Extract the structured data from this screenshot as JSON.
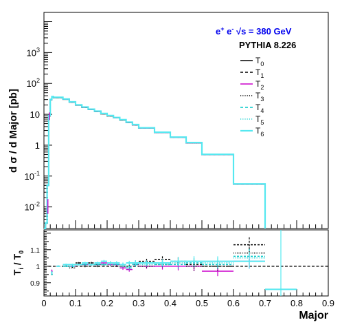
{
  "chart_data": [
    {
      "type": "line",
      "panel": "top",
      "ylabel": "d σ / d Major [pb]",
      "yscale": "log",
      "ylim": [
        0.002,
        20000
      ],
      "xlim": [
        0,
        0.9
      ],
      "grid": false,
      "y_tick_labels": [
        {
          "v": 0.01,
          "base": "10",
          "exp": "-2"
        },
        {
          "v": 0.1,
          "base": "10",
          "exp": "-1"
        },
        {
          "v": 1,
          "base": "1",
          "exp": ""
        },
        {
          "v": 10,
          "base": "10",
          "exp": ""
        },
        {
          "v": 100,
          "base": "10",
          "exp": "2"
        },
        {
          "v": 1000,
          "base": "10",
          "exp": "3"
        }
      ],
      "bin_edges": [
        0,
        0.005,
        0.01,
        0.015,
        0.02,
        0.025,
        0.03,
        0.06,
        0.08,
        0.1,
        0.12,
        0.14,
        0.16,
        0.18,
        0.2,
        0.22,
        0.24,
        0.26,
        0.28,
        0.3,
        0.35,
        0.4,
        0.45,
        0.5,
        0.6,
        0.7
      ],
      "values": [
        0,
        0.003,
        0.05,
        9,
        30,
        37,
        35,
        31,
        25,
        20,
        17,
        14.5,
        12.5,
        10.5,
        9,
        7.8,
        6.6,
        5.5,
        4.6,
        3.6,
        2.6,
        1.8,
        1.2,
        0.5,
        0.055
      ],
      "legend_position": "top-right",
      "annotations": {
        "process_pre": "e",
        "process_sup1": "+",
        "process_mid": " e",
        "process_sup2": "-",
        "process_post": " √s = 380 GeV",
        "generator": "PYTHIA 8.226"
      },
      "legend": [
        {
          "base": "T",
          "sub": "0",
          "color": "#000000",
          "dash": "",
          "width": 1.6
        },
        {
          "base": "T",
          "sub": "1",
          "color": "#000000",
          "dash": "4,3",
          "width": 1.6
        },
        {
          "base": "T",
          "sub": "2",
          "color": "#cc00cc",
          "dash": "",
          "width": 1.6
        },
        {
          "base": "T",
          "sub": "3",
          "color": "#000000",
          "dash": "1.2,2",
          "width": 1.6
        },
        {
          "base": "T",
          "sub": "4",
          "color": "#00c8c8",
          "dash": "4,3",
          "width": 1.6
        },
        {
          "base": "T",
          "sub": "5",
          "color": "#33d6d6",
          "dash": "1.2,2",
          "width": 1.6
        },
        {
          "base": "T",
          "sub": "6",
          "color": "#55e8f0",
          "dash": "",
          "width": 2.2
        }
      ],
      "colors": {
        "annotation": "#0000ee",
        "main_line": "#55e8f0",
        "magenta": "#cc00cc"
      }
    },
    {
      "type": "line",
      "panel": "ratio",
      "xlabel": "Major",
      "ylabel_base": "T",
      "ylabel_sub1": "i",
      "ylabel_mid": " / T",
      "ylabel_sub2": "0",
      "ylim": [
        0.82,
        1.22
      ],
      "xlim": [
        0,
        0.9
      ],
      "x_ticks": [
        "0",
        "0.1",
        "0.2",
        "0.3",
        "0.4",
        "0.5",
        "0.6",
        "0.7",
        "0.8",
        "0.9"
      ],
      "y_ticks": [
        "0.9",
        "1",
        "1.1"
      ],
      "reference": 1.0,
      "series": [
        {
          "key": "T1",
          "color": "#000000",
          "dash": "3,2",
          "points": [
            [
              0.025,
              0.95
            ],
            [
              0.045,
              1.0
            ],
            [
              0.07,
              1.0
            ],
            [
              0.09,
              1.0
            ],
            [
              0.11,
              1.02
            ],
            [
              0.13,
              1.01
            ],
            [
              0.15,
              1.02
            ],
            [
              0.17,
              1.0
            ],
            [
              0.19,
              1.01
            ],
            [
              0.21,
              1.02
            ],
            [
              0.23,
              1.01
            ],
            [
              0.25,
              1.0
            ],
            [
              0.27,
              1.0
            ],
            [
              0.29,
              1.02
            ],
            [
              0.325,
              1.03
            ],
            [
              0.375,
              1.04
            ],
            [
              0.425,
              1.03
            ],
            [
              0.475,
              1.01
            ],
            [
              0.55,
              1.0
            ],
            [
              0.65,
              1.13
            ]
          ],
          "errors": [
            0.01,
            0.005,
            0.005,
            0.005,
            0.005,
            0.006,
            0.006,
            0.007,
            0.008,
            0.009,
            0.01,
            0.012,
            0.013,
            0.015,
            0.015,
            0.02,
            0.025,
            0.03,
            0.03,
            0.045
          ]
        },
        {
          "key": "T2",
          "color": "#cc00cc",
          "dash": "",
          "points": [
            [
              0.025,
              0.97
            ],
            [
              0.045,
              1.0
            ],
            [
              0.07,
              1.01
            ],
            [
              0.09,
              1.0
            ],
            [
              0.11,
              1.01
            ],
            [
              0.13,
              1.01
            ],
            [
              0.15,
              1.01
            ],
            [
              0.17,
              1.01
            ],
            [
              0.19,
              1.02
            ],
            [
              0.21,
              1.01
            ],
            [
              0.23,
              1.01
            ],
            [
              0.25,
              0.99
            ],
            [
              0.27,
              0.98
            ],
            [
              0.29,
              1.01
            ],
            [
              0.325,
              1.0
            ],
            [
              0.375,
              1.0
            ],
            [
              0.425,
              1.0
            ],
            [
              0.475,
              1.0
            ],
            [
              0.55,
              0.97
            ],
            [
              0.65,
              1.03
            ]
          ],
          "errors": [
            0.01,
            0.005,
            0.005,
            0.005,
            0.005,
            0.006,
            0.006,
            0.007,
            0.008,
            0.009,
            0.01,
            0.012,
            0.013,
            0.015,
            0.015,
            0.02,
            0.025,
            0.03,
            0.03,
            0.045
          ]
        },
        {
          "key": "T3",
          "color": "#000000",
          "dash": "1,1.5",
          "points": [
            [
              0.025,
              0.96
            ],
            [
              0.045,
              1.0
            ],
            [
              0.07,
              1.0
            ],
            [
              0.09,
              0.99
            ],
            [
              0.11,
              1.01
            ],
            [
              0.13,
              1.0
            ],
            [
              0.15,
              1.01
            ],
            [
              0.17,
              1.01
            ],
            [
              0.19,
              1.01
            ],
            [
              0.21,
              1.01
            ],
            [
              0.23,
              1.0
            ],
            [
              0.25,
              1.0
            ],
            [
              0.27,
              1.0
            ],
            [
              0.29,
              1.01
            ],
            [
              0.325,
              1.0
            ],
            [
              0.375,
              1.01
            ],
            [
              0.425,
              1.02
            ],
            [
              0.475,
              1.0
            ],
            [
              0.55,
              1.0
            ],
            [
              0.65,
              1.08
            ]
          ],
          "errors": [
            0.01,
            0.005,
            0.005,
            0.005,
            0.005,
            0.006,
            0.006,
            0.007,
            0.008,
            0.009,
            0.01,
            0.012,
            0.013,
            0.015,
            0.015,
            0.02,
            0.025,
            0.03,
            0.03,
            0.045
          ]
        },
        {
          "key": "T4",
          "color": "#00c8c8",
          "dash": "3,2",
          "points": [
            [
              0.025,
              0.95
            ],
            [
              0.045,
              1.0
            ],
            [
              0.07,
              1.0
            ],
            [
              0.09,
              1.0
            ],
            [
              0.11,
              1.01
            ],
            [
              0.13,
              1.01
            ],
            [
              0.15,
              1.01
            ],
            [
              0.17,
              1.01
            ],
            [
              0.19,
              1.01
            ],
            [
              0.21,
              1.02
            ],
            [
              0.23,
              1.01
            ],
            [
              0.25,
              1.01
            ],
            [
              0.27,
              0.99
            ],
            [
              0.29,
              1.01
            ],
            [
              0.325,
              1.02
            ],
            [
              0.375,
              1.01
            ],
            [
              0.425,
              1.01
            ],
            [
              0.475,
              1.02
            ],
            [
              0.55,
              1.01
            ],
            [
              0.65,
              1.06
            ]
          ],
          "errors": [
            0.01,
            0.005,
            0.005,
            0.005,
            0.005,
            0.006,
            0.006,
            0.007,
            0.008,
            0.009,
            0.01,
            0.012,
            0.013,
            0.015,
            0.015,
            0.02,
            0.025,
            0.03,
            0.03,
            0.045
          ]
        },
        {
          "key": "T5",
          "color": "#33d6d6",
          "dash": "1,1.5",
          "points": [
            [
              0.025,
              0.96
            ],
            [
              0.045,
              1.0
            ],
            [
              0.07,
              1.01
            ],
            [
              0.09,
              1.01
            ],
            [
              0.11,
              1.01
            ],
            [
              0.13,
              1.02
            ],
            [
              0.15,
              1.01
            ],
            [
              0.17,
              1.02
            ],
            [
              0.19,
              1.01
            ],
            [
              0.21,
              1.01
            ],
            [
              0.23,
              1.02
            ],
            [
              0.25,
              1.0
            ],
            [
              0.27,
              1.0
            ],
            [
              0.29,
              1.02
            ],
            [
              0.325,
              1.01
            ],
            [
              0.375,
              1.02
            ],
            [
              0.425,
              1.02
            ],
            [
              0.475,
              1.03
            ],
            [
              0.55,
              1.02
            ],
            [
              0.65,
              1.05
            ]
          ],
          "errors": [
            0.01,
            0.005,
            0.005,
            0.005,
            0.005,
            0.006,
            0.006,
            0.007,
            0.008,
            0.009,
            0.01,
            0.012,
            0.013,
            0.015,
            0.015,
            0.02,
            0.025,
            0.03,
            0.03,
            0.045
          ]
        },
        {
          "key": "T6",
          "color": "#55e8f0",
          "dash": "",
          "points": [
            [
              0.025,
              0.96
            ],
            [
              0.045,
              1.0
            ],
            [
              0.07,
              1.01
            ],
            [
              0.09,
              1.01
            ],
            [
              0.11,
              1.01
            ],
            [
              0.13,
              1.02
            ],
            [
              0.15,
              1.01
            ],
            [
              0.17,
              1.02
            ],
            [
              0.19,
              1.03
            ],
            [
              0.21,
              1.02
            ],
            [
              0.23,
              1.02
            ],
            [
              0.25,
              1.01
            ],
            [
              0.27,
              1.02
            ],
            [
              0.29,
              1.02
            ],
            [
              0.325,
              1.02
            ],
            [
              0.375,
              1.02
            ],
            [
              0.425,
              1.03
            ],
            [
              0.475,
              1.03
            ],
            [
              0.55,
              1.03
            ],
            [
              0.65,
              1.03
            ],
            [
              0.75,
              0.86
            ]
          ],
          "errors": [
            0.01,
            0.005,
            0.005,
            0.005,
            0.005,
            0.006,
            0.006,
            0.007,
            0.008,
            0.009,
            0.01,
            0.012,
            0.013,
            0.015,
            0.015,
            0.02,
            0.025,
            0.03,
            0.03,
            0.045,
            0.5
          ]
        }
      ]
    }
  ]
}
